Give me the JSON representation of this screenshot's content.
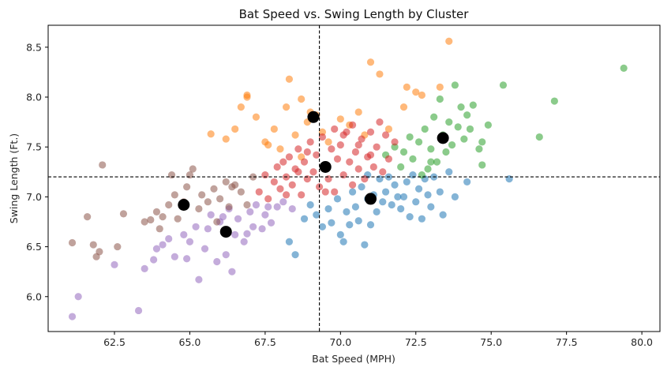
{
  "chart_data": {
    "type": "scatter",
    "title": "Bat Speed vs. Swing Length by Cluster",
    "xlabel": "Bat Speed (MPH)",
    "ylabel": "Swing Length (Ft.)",
    "xlim": [
      60.3,
      80.6
    ],
    "ylim": [
      5.65,
      8.72
    ],
    "xticks": [
      62.5,
      65.0,
      67.5,
      70.0,
      72.5,
      75.0,
      77.5,
      80.0
    ],
    "xtick_labels": [
      "62.5",
      "65.0",
      "67.5",
      "70.0",
      "72.5",
      "75.0",
      "77.5",
      "80.0"
    ],
    "yticks": [
      6.0,
      6.5,
      7.0,
      7.5,
      8.0,
      8.5
    ],
    "ytick_labels": [
      "6.0",
      "6.5",
      "7.0",
      "7.5",
      "8.0",
      "8.5"
    ],
    "grid": false,
    "reference_lines": {
      "vertical_x": 69.3,
      "horizontal_y": 7.2
    },
    "colors": {
      "blue": "#1f77b4",
      "orange": "#ff7f0e",
      "green": "#2ca02c",
      "red": "#d62728",
      "purple": "#9467bd",
      "brown": "#8c564b",
      "centroid": "#000000"
    },
    "series": [
      {
        "color": "#1f77b4",
        "points": [
          [
            68.3,
            6.55
          ],
          [
            68.5,
            6.42
          ],
          [
            68.8,
            6.78
          ],
          [
            69.0,
            6.92
          ],
          [
            69.2,
            6.82
          ],
          [
            69.4,
            6.7
          ],
          [
            69.6,
            6.88
          ],
          [
            69.7,
            6.74
          ],
          [
            69.9,
            6.98
          ],
          [
            70.0,
            6.62
          ],
          [
            70.1,
            6.55
          ],
          [
            70.2,
            6.85
          ],
          [
            70.3,
            6.72
          ],
          [
            70.4,
            7.05
          ],
          [
            70.5,
            6.9
          ],
          [
            70.6,
            6.76
          ],
          [
            70.7,
            7.1
          ],
          [
            70.8,
            6.52
          ],
          [
            70.9,
            6.98
          ],
          [
            71.0,
            6.72
          ],
          [
            71.1,
            7.02
          ],
          [
            71.2,
            6.85
          ],
          [
            71.3,
            7.18
          ],
          [
            71.4,
            6.95
          ],
          [
            71.5,
            7.05
          ],
          [
            71.6,
            7.2
          ],
          [
            71.7,
            6.92
          ],
          [
            71.8,
            7.12
          ],
          [
            72.0,
            6.88
          ],
          [
            72.1,
            7.0
          ],
          [
            72.2,
            7.15
          ],
          [
            72.3,
            6.8
          ],
          [
            72.4,
            7.22
          ],
          [
            72.5,
            6.95
          ],
          [
            72.6,
            7.08
          ],
          [
            72.7,
            6.78
          ],
          [
            72.8,
            7.18
          ],
          [
            72.9,
            7.02
          ],
          [
            73.0,
            6.9
          ],
          [
            73.1,
            7.2
          ],
          [
            73.3,
            7.05
          ],
          [
            73.4,
            6.82
          ],
          [
            73.6,
            7.25
          ],
          [
            73.8,
            7.0
          ],
          [
            74.2,
            7.15
          ],
          [
            75.6,
            7.18
          ],
          [
            70.9,
            7.22
          ],
          [
            71.9,
            7.0
          ]
        ]
      },
      {
        "color": "#ff7f0e",
        "points": [
          [
            65.7,
            7.63
          ],
          [
            66.2,
            7.58
          ],
          [
            66.5,
            7.68
          ],
          [
            66.7,
            7.9
          ],
          [
            66.9,
            8.0
          ],
          [
            66.9,
            8.02
          ],
          [
            67.2,
            7.8
          ],
          [
            67.5,
            7.55
          ],
          [
            67.8,
            7.68
          ],
          [
            68.0,
            7.48
          ],
          [
            68.2,
            7.9
          ],
          [
            68.3,
            8.18
          ],
          [
            68.5,
            7.62
          ],
          [
            68.7,
            7.98
          ],
          [
            68.9,
            7.75
          ],
          [
            69.0,
            7.85
          ],
          [
            69.2,
            7.82
          ],
          [
            69.4,
            7.65
          ],
          [
            69.6,
            7.55
          ],
          [
            70.0,
            7.78
          ],
          [
            70.3,
            7.72
          ],
          [
            70.6,
            7.85
          ],
          [
            70.8,
            7.62
          ],
          [
            71.0,
            8.35
          ],
          [
            71.3,
            8.23
          ],
          [
            71.6,
            7.68
          ],
          [
            72.1,
            7.9
          ],
          [
            72.2,
            8.1
          ],
          [
            72.5,
            8.05
          ],
          [
            72.7,
            8.02
          ],
          [
            73.3,
            8.1
          ],
          [
            73.6,
            8.56
          ],
          [
            67.6,
            7.52
          ],
          [
            68.7,
            7.4
          ]
        ]
      },
      {
        "color": "#2ca02c",
        "points": [
          [
            71.5,
            7.42
          ],
          [
            71.8,
            7.5
          ],
          [
            72.0,
            7.3
          ],
          [
            72.1,
            7.45
          ],
          [
            72.3,
            7.6
          ],
          [
            72.4,
            7.38
          ],
          [
            72.6,
            7.55
          ],
          [
            72.8,
            7.68
          ],
          [
            72.9,
            7.28
          ],
          [
            73.0,
            7.48
          ],
          [
            73.1,
            7.8
          ],
          [
            73.2,
            7.35
          ],
          [
            73.3,
            7.98
          ],
          [
            73.4,
            7.62
          ],
          [
            73.5,
            7.45
          ],
          [
            73.6,
            7.75
          ],
          [
            73.7,
            7.52
          ],
          [
            73.8,
            8.12
          ],
          [
            73.9,
            7.7
          ],
          [
            74.0,
            7.9
          ],
          [
            74.1,
            7.58
          ],
          [
            74.2,
            7.82
          ],
          [
            74.3,
            7.68
          ],
          [
            74.4,
            7.92
          ],
          [
            74.6,
            7.48
          ],
          [
            74.7,
            7.32
          ],
          [
            74.9,
            7.72
          ],
          [
            75.4,
            8.12
          ],
          [
            76.6,
            7.6
          ],
          [
            77.1,
            7.96
          ],
          [
            79.4,
            8.29
          ],
          [
            72.7,
            7.22
          ],
          [
            73.0,
            7.35
          ],
          [
            74.7,
            7.55
          ]
        ]
      },
      {
        "color": "#d62728",
        "points": [
          [
            67.3,
            7.05
          ],
          [
            67.5,
            7.22
          ],
          [
            67.6,
            6.98
          ],
          [
            67.8,
            7.15
          ],
          [
            67.9,
            7.3
          ],
          [
            68.0,
            7.08
          ],
          [
            68.1,
            7.35
          ],
          [
            68.2,
            7.2
          ],
          [
            68.3,
            7.4
          ],
          [
            68.4,
            7.12
          ],
          [
            68.5,
            7.28
          ],
          [
            68.6,
            7.48
          ],
          [
            68.7,
            7.02
          ],
          [
            68.8,
            7.35
          ],
          [
            68.9,
            7.18
          ],
          [
            69.0,
            7.55
          ],
          [
            69.1,
            7.25
          ],
          [
            69.2,
            7.42
          ],
          [
            69.3,
            7.1
          ],
          [
            69.4,
            7.6
          ],
          [
            69.5,
            7.32
          ],
          [
            69.6,
            7.18
          ],
          [
            69.7,
            7.48
          ],
          [
            69.8,
            7.05
          ],
          [
            69.9,
            7.38
          ],
          [
            70.0,
            7.52
          ],
          [
            70.1,
            7.22
          ],
          [
            70.2,
            7.65
          ],
          [
            70.3,
            7.35
          ],
          [
            70.4,
            7.12
          ],
          [
            70.5,
            7.45
          ],
          [
            70.6,
            7.28
          ],
          [
            70.7,
            7.58
          ],
          [
            70.8,
            7.18
          ],
          [
            70.9,
            7.4
          ],
          [
            71.0,
            7.65
          ],
          [
            71.1,
            7.3
          ],
          [
            71.2,
            7.5
          ],
          [
            71.3,
            7.75
          ],
          [
            71.4,
            7.25
          ],
          [
            71.5,
            7.62
          ],
          [
            71.6,
            7.38
          ],
          [
            71.8,
            7.55
          ],
          [
            70.1,
            7.62
          ],
          [
            69.5,
            7.05
          ],
          [
            68.9,
            7.45
          ],
          [
            68.2,
            7.02
          ],
          [
            70.6,
            7.52
          ],
          [
            69.8,
            7.68
          ],
          [
            71.0,
            7.42
          ],
          [
            68.6,
            7.25
          ],
          [
            70.4,
            7.72
          ]
        ]
      },
      {
        "color": "#9467bd",
        "points": [
          [
            61.1,
            5.8
          ],
          [
            61.3,
            6.0
          ],
          [
            63.3,
            5.86
          ],
          [
            62.5,
            6.32
          ],
          [
            63.5,
            6.28
          ],
          [
            63.8,
            6.37
          ],
          [
            63.9,
            6.48
          ],
          [
            64.1,
            6.52
          ],
          [
            64.3,
            6.58
          ],
          [
            64.5,
            6.4
          ],
          [
            64.8,
            6.62
          ],
          [
            65.0,
            6.55
          ],
          [
            65.2,
            6.7
          ],
          [
            65.3,
            6.17
          ],
          [
            65.5,
            6.48
          ],
          [
            65.7,
            6.82
          ],
          [
            65.9,
            6.35
          ],
          [
            66.0,
            6.75
          ],
          [
            66.2,
            6.42
          ],
          [
            66.3,
            6.88
          ],
          [
            66.4,
            6.25
          ],
          [
            66.5,
            6.62
          ],
          [
            66.6,
            6.78
          ],
          [
            66.8,
            6.55
          ],
          [
            67.0,
            6.85
          ],
          [
            67.1,
            6.7
          ],
          [
            67.2,
            6.92
          ],
          [
            67.4,
            6.68
          ],
          [
            67.5,
            6.82
          ],
          [
            67.7,
            6.74
          ],
          [
            67.9,
            6.9
          ],
          [
            68.1,
            6.95
          ],
          [
            68.4,
            6.88
          ],
          [
            66.1,
            6.8
          ],
          [
            64.9,
            6.38
          ],
          [
            65.6,
            6.68
          ],
          [
            66.9,
            6.63
          ],
          [
            67.6,
            6.9
          ]
        ]
      },
      {
        "color": "#8c564b",
        "points": [
          [
            61.1,
            6.54
          ],
          [
            61.6,
            6.8
          ],
          [
            61.8,
            6.52
          ],
          [
            61.9,
            6.4
          ],
          [
            62.0,
            6.45
          ],
          [
            62.1,
            7.32
          ],
          [
            62.6,
            6.5
          ],
          [
            62.8,
            6.83
          ],
          [
            63.5,
            6.75
          ],
          [
            63.7,
            6.77
          ],
          [
            63.9,
            6.85
          ],
          [
            64.0,
            6.68
          ],
          [
            64.1,
            6.8
          ],
          [
            64.3,
            6.92
          ],
          [
            64.5,
            7.02
          ],
          [
            64.6,
            6.78
          ],
          [
            64.8,
            6.95
          ],
          [
            64.9,
            7.1
          ],
          [
            65.0,
            7.22
          ],
          [
            65.1,
            7.28
          ],
          [
            65.3,
            6.88
          ],
          [
            65.4,
            7.02
          ],
          [
            65.6,
            6.95
          ],
          [
            65.8,
            7.08
          ],
          [
            66.0,
            6.98
          ],
          [
            66.2,
            7.15
          ],
          [
            66.3,
            6.9
          ],
          [
            66.5,
            7.12
          ],
          [
            66.7,
            7.05
          ],
          [
            66.9,
            6.92
          ],
          [
            67.1,
            7.2
          ],
          [
            65.9,
            6.75
          ],
          [
            66.4,
            7.1
          ],
          [
            64.4,
            7.22
          ]
        ]
      }
    ],
    "centroids": [
      [
        64.8,
        6.92
      ],
      [
        66.2,
        6.65
      ],
      [
        69.1,
        7.8
      ],
      [
        69.5,
        7.3
      ],
      [
        71.0,
        6.98
      ],
      [
        73.4,
        7.59
      ]
    ]
  }
}
